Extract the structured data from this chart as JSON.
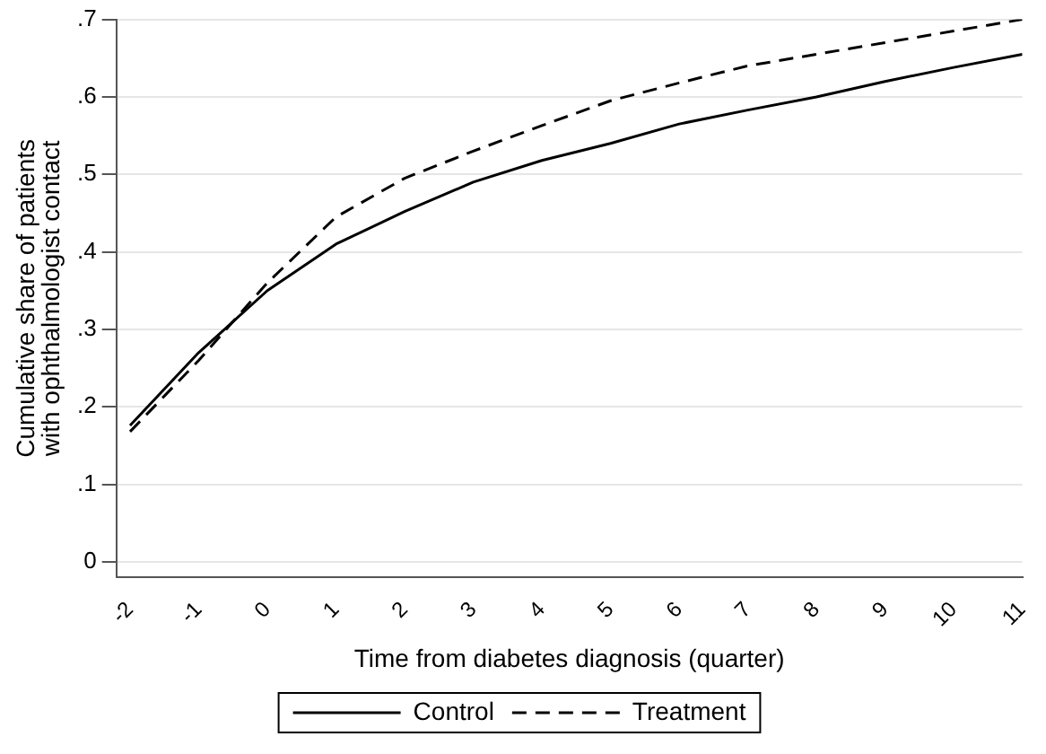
{
  "chart_data": {
    "type": "line",
    "xlabel": "Time from diabetes diagnosis (quarter)",
    "ylabel": "Cumulative share of patients with ophthalmologist contact",
    "x": [
      -2,
      -1,
      0,
      1,
      2,
      3,
      4,
      5,
      6,
      7,
      8,
      9,
      10,
      11
    ],
    "series": [
      {
        "name": "Control",
        "color": "#000000",
        "line_style": "solid",
        "values": [
          0.176,
          0.27,
          0.35,
          0.41,
          0.452,
          0.49,
          0.518,
          0.54,
          0.565,
          0.583,
          0.6,
          0.62,
          0.638,
          0.655
        ]
      },
      {
        "name": "Treatment",
        "color": "#000000",
        "line_style": "dashed",
        "values": [
          0.168,
          0.26,
          0.36,
          0.445,
          0.495,
          0.53,
          0.563,
          0.595,
          0.618,
          0.64,
          0.655,
          0.67,
          0.685,
          0.7
        ]
      }
    ],
    "xlim": [
      -2.2,
      11
    ],
    "xticks": [
      -2,
      -1,
      0,
      1,
      2,
      3,
      4,
      5,
      6,
      7,
      8,
      9,
      10,
      11
    ],
    "ylim": [
      -0.02,
      0.7
    ],
    "yticks": [
      0,
      {
        "value": 0.1,
        "label": ".1"
      },
      {
        "value": 0.2,
        "label": ".2"
      },
      {
        "value": 0.3,
        "label": ".3"
      },
      {
        "value": 0.4,
        "label": ".4"
      },
      {
        "value": 0.5,
        "label": ".5"
      },
      {
        "value": 0.6,
        "label": ".6"
      },
      {
        "value": 0.7,
        "label": ".7"
      }
    ],
    "grid": "y",
    "legend": "bottom",
    "marker": "none"
  }
}
